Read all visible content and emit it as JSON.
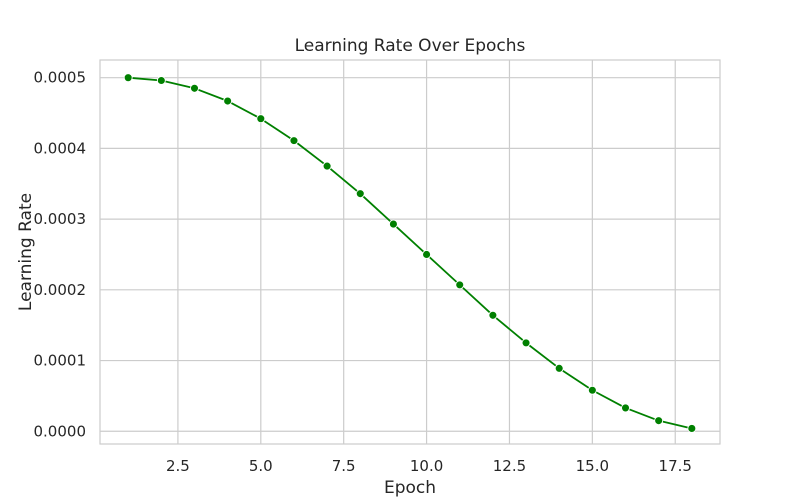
{
  "chart_data": {
    "type": "line",
    "title": "Learning Rate Over Epochs",
    "xlabel": "Epoch",
    "ylabel": "Learning Rate",
    "xlim": [
      0.15,
      18.85
    ],
    "ylim": [
      -1.8e-05,
      0.000525
    ],
    "x_ticks": [
      2.5,
      5.0,
      7.5,
      10.0,
      12.5,
      15.0,
      17.5
    ],
    "x_tick_labels": [
      "2.5",
      "5.0",
      "7.5",
      "10.0",
      "12.5",
      "15.0",
      "17.5"
    ],
    "y_ticks": [
      0.0,
      0.0001,
      0.0002,
      0.0003,
      0.0004,
      0.0005
    ],
    "y_tick_labels": [
      "0.0000",
      "0.0001",
      "0.0002",
      "0.0003",
      "0.0004",
      "0.0005"
    ],
    "grid": true,
    "series": [
      {
        "color": "#008000",
        "marker": "circle",
        "x": [
          1,
          2,
          3,
          4,
          5,
          6,
          7,
          8,
          9,
          10,
          11,
          12,
          13,
          14,
          15,
          16,
          17,
          18
        ],
        "y": [
          0.0005,
          0.000496,
          0.000485,
          0.000467,
          0.000442,
          0.000411,
          0.000375,
          0.000336,
          0.000293,
          0.00025,
          0.000207,
          0.000164,
          0.000125,
          8.9e-05,
          5.8e-05,
          3.3e-05,
          1.5e-05,
          4e-06
        ]
      }
    ]
  }
}
